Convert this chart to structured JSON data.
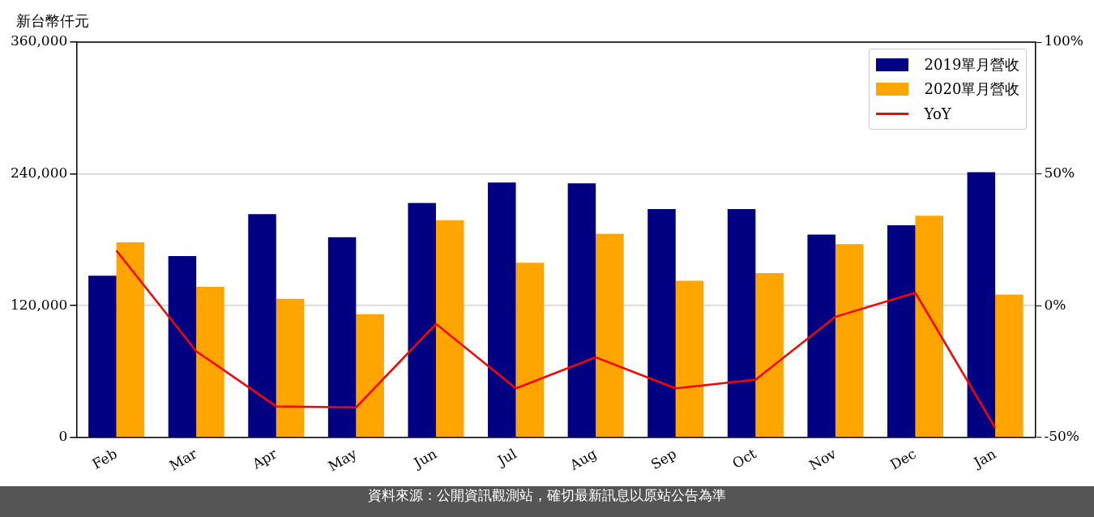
{
  "chart_data": {
    "type": "bar",
    "ylabel": "新台幣仟元",
    "categories": [
      "Feb",
      "Mar",
      "Apr",
      "May",
      "Jun",
      "Jul",
      "Aug",
      "Sep",
      "Oct",
      "Nov",
      "Dec",
      "Jan"
    ],
    "series": [
      {
        "name": "2019單月營收",
        "color": "#000080",
        "values": [
          147300,
          165200,
          203400,
          182300,
          213500,
          232200,
          231400,
          208000,
          208000,
          184700,
          193200,
          241600
        ]
      },
      {
        "name": "2020單月營收",
        "color": "#ffa500",
        "values": [
          177700,
          137100,
          126200,
          112200,
          197900,
          159000,
          185500,
          142600,
          149600,
          176100,
          201800,
          130100
        ]
      },
      {
        "name": "YoY",
        "type": "line",
        "axis": "y2",
        "color": "#ff0000",
        "values": [
          20.9,
          -17.3,
          -38.2,
          -38.6,
          -6.9,
          -31.4,
          -19.6,
          -31.4,
          -28.1,
          -4.2,
          4.9,
          -46.4
        ]
      }
    ],
    "ylim": [
      0,
      360000
    ],
    "yticks": [
      0,
      {
        "value": 120000,
        "label": "120,000"
      },
      {
        "value": 240000,
        "label": "240,000"
      },
      {
        "value": 360000,
        "label": "360,000"
      }
    ],
    "y2lim": [
      -50,
      100
    ],
    "y2ticks": [
      {
        "value": -50,
        "label": "-50%"
      },
      {
        "value": 0,
        "label": "0%"
      },
      {
        "value": 50,
        "label": "50%"
      },
      {
        "value": 100,
        "label": "100%"
      }
    ],
    "grid": "y",
    "legend": "top right",
    "marker": "none",
    "annotations": [
      "資料來源：公開資訊觀測站，確切最新訊息以原站公告為準"
    ]
  }
}
